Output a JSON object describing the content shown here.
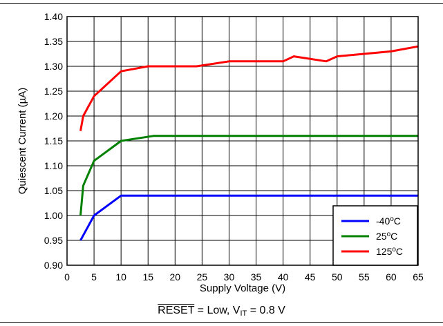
{
  "chart_data": {
    "type": "line",
    "xlabel": "Supply Voltage (V)",
    "ylabel": "Quiescent Current (µA)",
    "xlim": [
      0,
      65
    ],
    "ylim": [
      0.9,
      1.4
    ],
    "x_ticks": [
      "0",
      "5",
      "10",
      "15",
      "20",
      "25",
      "30",
      "35",
      "40",
      "45",
      "50",
      "55",
      "60",
      "65"
    ],
    "y_ticks": [
      "0.90",
      "0.95",
      "1.00",
      "1.05",
      "1.10",
      "1.15",
      "1.20",
      "1.25",
      "1.30",
      "1.35",
      "1.40"
    ],
    "grid": true,
    "legend_position": "bottom-right",
    "series": [
      {
        "name": "-40",
        "unit": "oC",
        "color": "#0000ff",
        "x": [
          2.5,
          3,
          5,
          10,
          15,
          20,
          25,
          30,
          35,
          40,
          45,
          50,
          55,
          60,
          65
        ],
        "y": [
          0.95,
          0.96,
          1.0,
          1.04,
          1.04,
          1.04,
          1.04,
          1.04,
          1.04,
          1.04,
          1.04,
          1.04,
          1.04,
          1.04,
          1.04
        ]
      },
      {
        "name": "25",
        "unit": "oC",
        "color": "#008000",
        "x": [
          2.5,
          3,
          5,
          10,
          16,
          20,
          25,
          30,
          35,
          40,
          45,
          50,
          55,
          60,
          65
        ],
        "y": [
          1.0,
          1.06,
          1.11,
          1.15,
          1.16,
          1.16,
          1.16,
          1.16,
          1.16,
          1.16,
          1.16,
          1.16,
          1.16,
          1.16,
          1.16
        ]
      },
      {
        "name": "125",
        "unit": "oC",
        "color": "#ff0000",
        "x": [
          2.5,
          3,
          5,
          10,
          15,
          20,
          24,
          30,
          35,
          40,
          42,
          48,
          50,
          55,
          60,
          65
        ],
        "y": [
          1.17,
          1.2,
          1.24,
          1.29,
          1.3,
          1.3,
          1.3,
          1.31,
          1.31,
          1.31,
          1.32,
          1.31,
          1.32,
          1.325,
          1.33,
          1.34
        ]
      }
    ]
  },
  "condition": {
    "reset": "RESET",
    "middle": " = Low, V",
    "sub": "IT",
    "end": " = 0.8 V"
  }
}
